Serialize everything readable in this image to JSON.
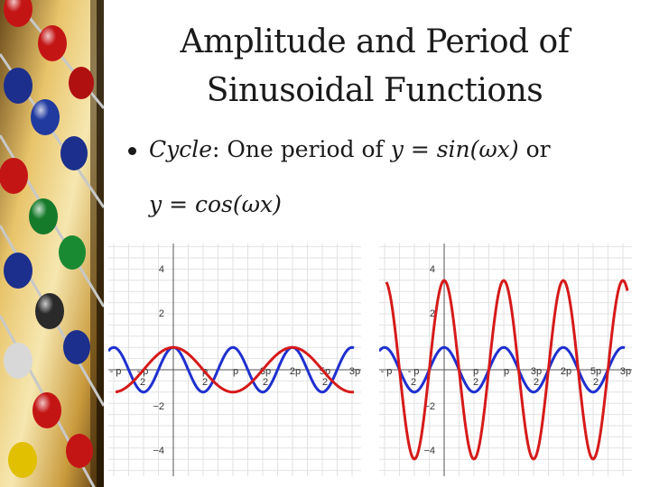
{
  "title": {
    "line1": "Amplitude and Period of",
    "line2": "Sinusoidal Functions"
  },
  "bullet": {
    "term": "Cycle",
    "text_after_term": ": One period of ",
    "expr1": "y = sin(ωx)",
    "connector": " or",
    "expr2": "y = cos(ωx)"
  },
  "graphs": [
    {
      "y_tick_labels": [
        "4",
        "2",
        "−2",
        "−4"
      ],
      "x_tick_labels": [
        "- p",
        "- p",
        "p",
        "p",
        "3p",
        "2p",
        "5p",
        "3p"
      ],
      "x_tick_sublabels": [
        "2",
        "2",
        "2",
        "2"
      ],
      "curve_colors": {
        "blue": "#1f2fd0",
        "red": "#d61a1a"
      }
    },
    {
      "y_tick_labels": [
        "4",
        "2",
        "−2",
        "−4"
      ],
      "x_tick_labels": [
        "- p",
        "- p",
        "p",
        "p",
        "3p",
        "2p",
        "5p",
        "3p"
      ],
      "x_tick_sublabels": [
        "2",
        "2",
        "2",
        "2"
      ],
      "curve_colors": {
        "blue": "#1f2fd0",
        "red": "#d61a1a"
      }
    }
  ]
}
